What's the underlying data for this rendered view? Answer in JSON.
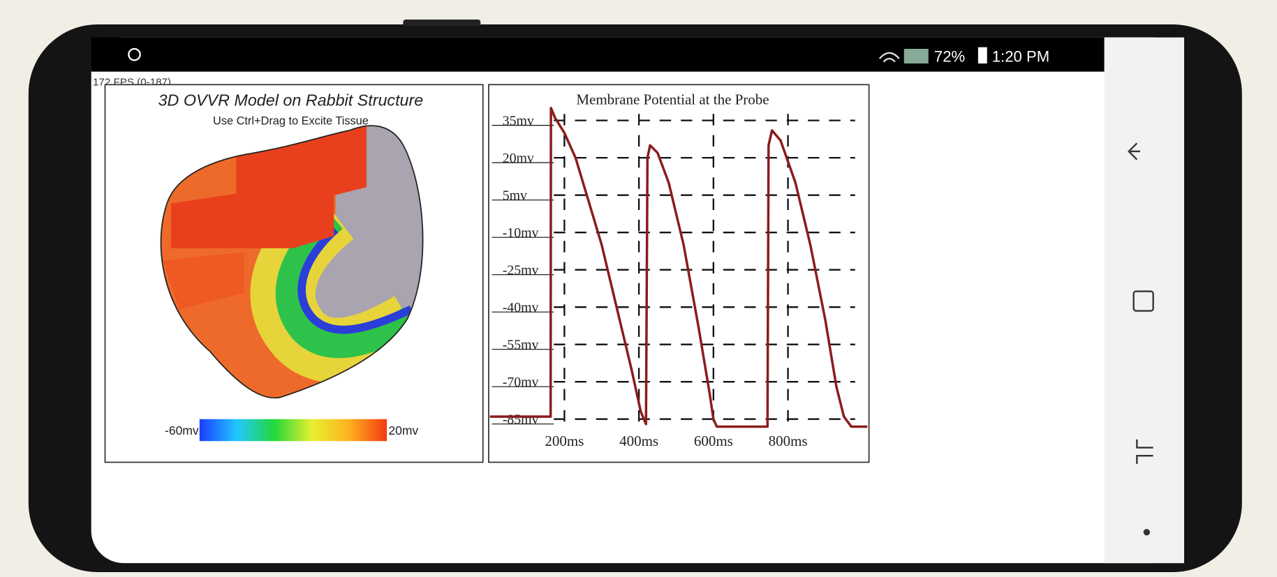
{
  "status_bar": {
    "battery": "72%",
    "time": "1:20 PM"
  },
  "fps": "172 FPS (0-187)",
  "model_panel": {
    "title": "3D OVVR Model on Rabbit Structure",
    "subtitle": "Use Ctrl+Drag to Excite Tissue",
    "colorbar": {
      "min_label": "-60mv",
      "max_label": "20mv"
    }
  },
  "probe_chart": {
    "type": "line",
    "title": "Membrane Potential at the Probe",
    "x": [
      0,
      163,
      164,
      175,
      200,
      230,
      260,
      300,
      340,
      380,
      405,
      419,
      423,
      430,
      450,
      480,
      520,
      560,
      590,
      600,
      609,
      745,
      748,
      757,
      780,
      820,
      860,
      900,
      930,
      950,
      970,
      1013
    ],
    "series": [
      {
        "color": "#8b1c1c",
        "values": [
          -84,
          -84,
          40,
          36,
          30,
          20,
          5,
          -15,
          -40,
          -65,
          -82,
          -87,
          20,
          25,
          22,
          10,
          -15,
          -48,
          -75,
          -85,
          -88,
          -88,
          25,
          31,
          27,
          10,
          -15,
          -45,
          -72,
          -84,
          -88,
          -88
        ]
      }
    ],
    "xlim": [
      0,
      1013
    ],
    "ylim": [
      -90,
      40
    ],
    "xticks": [
      {
        "value": 200,
        "label": "200ms"
      },
      {
        "value": 400,
        "label": "400ms"
      },
      {
        "value": 600,
        "label": "600ms"
      },
      {
        "value": 800,
        "label": "800ms"
      }
    ],
    "yticks": [
      {
        "value": 35,
        "label": "35mv"
      },
      {
        "value": 20,
        "label": "20mv"
      },
      {
        "value": 5,
        "label": "5mv"
      },
      {
        "value": -10,
        "label": "-10mv"
      },
      {
        "value": -25,
        "label": "-25mv"
      },
      {
        "value": -40,
        "label": "-40mv"
      },
      {
        "value": -55,
        "label": "-55mv"
      },
      {
        "value": -70,
        "label": "-70mv"
      },
      {
        "value": -85,
        "label": "-85mv"
      }
    ],
    "grid": true
  }
}
